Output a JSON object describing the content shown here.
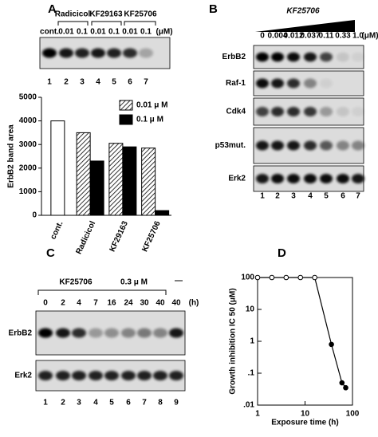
{
  "panels": {
    "a": "A",
    "b": "B",
    "c": "C",
    "d": "D"
  },
  "blot_a": {
    "treatments": [
      "Radicicol",
      "KF29163",
      "KF25706"
    ],
    "doses": [
      "cont.",
      "0.01",
      "0.1",
      "0.01",
      "0.1",
      "0.01",
      "0.1"
    ],
    "unit": "(μM)",
    "lanes": [
      "1",
      "2",
      "3",
      "4",
      "5",
      "6",
      "7"
    ]
  },
  "blot_b": {
    "title": "KF25706",
    "doses": [
      "0",
      "0.004",
      "0.012",
      "0.037",
      "0.11",
      "0.33",
      "1.0"
    ],
    "unit": "(μM)",
    "rows": [
      "ErbB2",
      "Raf-1",
      "Cdk4",
      "p53mut.",
      "Erk2"
    ],
    "lanes": [
      "1",
      "2",
      "3",
      "4",
      "5",
      "6",
      "7"
    ]
  },
  "blot_c": {
    "treatment": "KF25706",
    "dose": "0.3 μ M",
    "control": "—",
    "times": [
      "0",
      "2",
      "4",
      "7",
      "16",
      "24",
      "30",
      "40",
      "40"
    ],
    "unit": "(h)",
    "rows": [
      "ErbB2",
      "Erk2"
    ],
    "lanes": [
      "1",
      "2",
      "3",
      "4",
      "5",
      "6",
      "7",
      "8",
      "9"
    ]
  },
  "chart_data": [
    {
      "type": "bar",
      "ylabel": "ErbB2 band area",
      "categories": [
        "cont.",
        "Radicicol",
        "KF29163",
        "KF25706"
      ],
      "series": [
        {
          "color": "#ffffff",
          "values": [
            4000,
            null,
            null,
            null
          ]
        },
        {
          "name": "0.01 μ M",
          "color": "#000000",
          "pattern": "hatch",
          "values": [
            null,
            3500,
            3050,
            2850
          ]
        },
        {
          "name": "0.1 μ M",
          "color": "#000000",
          "values": [
            null,
            2300,
            2900,
            200
          ]
        }
      ],
      "ylim": [
        0,
        5000
      ],
      "yticks": [
        0,
        1000,
        2000,
        3000,
        4000,
        5000
      ],
      "legend": "upper right"
    },
    {
      "type": "line",
      "xlabel": "Exposure time (h)",
      "ylabel": "Growth inhibition  IC 50 (μM)",
      "x": [
        1,
        2,
        4,
        8,
        16,
        36,
        60,
        72
      ],
      "values": [
        100,
        100,
        100,
        100,
        100,
        0.8,
        0.05,
        0.035
      ],
      "color": "#000000",
      "point_colors": [
        "#ffffff",
        "#ffffff",
        "#ffffff",
        "#ffffff",
        "#ffffff",
        "#000000",
        "#000000",
        "#000000"
      ],
      "xscale": "log",
      "yscale": "log",
      "xlim": [
        1,
        100
      ],
      "ylim": [
        0.01,
        100
      ],
      "xticks": [
        1,
        10,
        100
      ],
      "yticks": [
        100,
        10,
        1,
        {
          "value": 0.1,
          "label": ".1"
        },
        {
          "value": 0.01,
          "label": ".01"
        }
      ]
    }
  ]
}
